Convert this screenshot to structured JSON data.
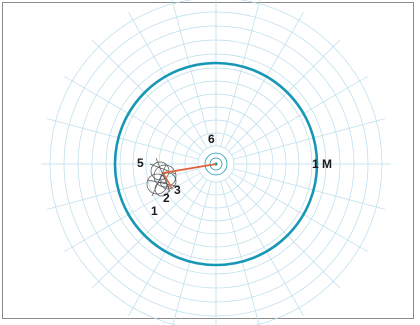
{
  "diagram": {
    "grid_color": "#b9dcec",
    "ring_color": "#1597b5",
    "vector_color": "#e0603a",
    "small_circle_color": "#555555",
    "labels": {
      "center": "6",
      "ring": "1 M",
      "cluster_5": "5",
      "cluster_2": "2",
      "cluster_3": "3",
      "cluster_1": "1"
    }
  }
}
